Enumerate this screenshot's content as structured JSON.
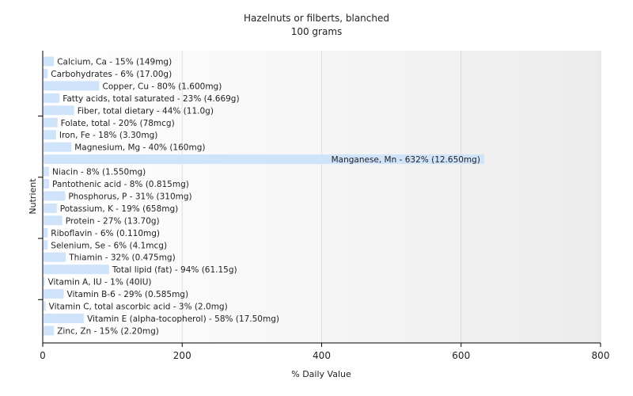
{
  "chart_data": {
    "type": "bar",
    "orientation": "horizontal",
    "title": "Hazelnuts or filberts, blanched",
    "subtitle": "100 grams",
    "xlabel": "% Daily Value",
    "ylabel": "Nutrient",
    "xlim": [
      0,
      800
    ],
    "xticks": [
      "0",
      "200",
      "400",
      "600",
      "800"
    ],
    "grid": true,
    "bar_color": "#cfe3fb",
    "categories": [
      "Calcium, Ca",
      "Carbohydrates",
      "Copper, Cu",
      "Fatty acids, total saturated",
      "Fiber, total dietary",
      "Folate, total",
      "Iron, Fe",
      "Magnesium, Mg",
      "Manganese, Mn",
      "Niacin",
      "Pantothenic acid",
      "Phosphorus, P",
      "Potassium, K",
      "Protein",
      "Riboflavin",
      "Selenium, Se",
      "Thiamin",
      "Total lipid (fat)",
      "Vitamin A, IU",
      "Vitamin B-6",
      "Vitamin C, total ascorbic acid",
      "Vitamin E (alpha-tocopherol)",
      "Zinc, Zn"
    ],
    "values": [
      15,
      6,
      80,
      23,
      44,
      20,
      18,
      40,
      632,
      8,
      8,
      31,
      19,
      27,
      6,
      6,
      32,
      94,
      1,
      29,
      3,
      58,
      15
    ],
    "labels": [
      "Calcium, Ca - 15% (149mg)",
      "Carbohydrates - 6% (17.00g)",
      "Copper, Cu - 80% (1.600mg)",
      "Fatty acids, total saturated - 23% (4.669g)",
      "Fiber, total dietary - 44% (11.0g)",
      "Folate, total - 20% (78mcg)",
      "Iron, Fe - 18% (3.30mg)",
      "Magnesium, Mg - 40% (160mg)",
      "Manganese, Mn - 632% (12.650mg)",
      "Niacin - 8% (1.550mg)",
      "Pantothenic acid - 8% (0.815mg)",
      "Phosphorus, P - 31% (310mg)",
      "Potassium, K - 19% (658mg)",
      "Protein - 27% (13.70g)",
      "Riboflavin - 6% (0.110mg)",
      "Selenium, Se - 6% (4.1mcg)",
      "Thiamin - 32% (0.475mg)",
      "Total lipid (fat) - 94% (61.15g)",
      "Vitamin A, IU - 1% (40IU)",
      "Vitamin B-6 - 29% (0.585mg)",
      "Vitamin C, total ascorbic acid - 3% (2.0mg)",
      "Vitamin E (alpha-tocopherol) - 58% (17.50mg)",
      "Zinc, Zn - 15% (2.20mg)"
    ]
  }
}
